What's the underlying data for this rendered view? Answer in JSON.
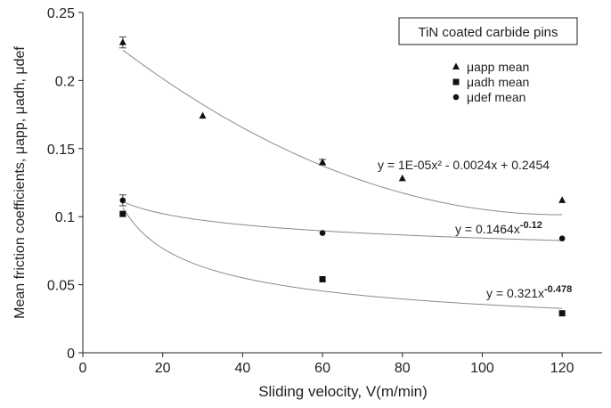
{
  "chart_data": {
    "type": "scatter",
    "title": "",
    "xlabel": "Sliding velocity, V(m/min)",
    "ylabel": "Mean friction coefficients, μapp, μadh, μdef",
    "xlim": [
      0,
      130
    ],
    "ylim": [
      0,
      0.25
    ],
    "x_ticks": [
      0,
      20,
      40,
      60,
      80,
      100,
      120
    ],
    "y_ticks": [
      0,
      0.05,
      0.1,
      0.15,
      0.2,
      0.25
    ],
    "x_tick_labels": [
      "0",
      "20",
      "40",
      "60",
      "80",
      "100",
      "120"
    ],
    "y_tick_labels": [
      "0",
      "0.05",
      "0.1",
      "0.15",
      "0.2",
      "0.25"
    ],
    "grid": false,
    "legend_position": "top-right",
    "annotation_box": "TiN coated carbide pins",
    "series": [
      {
        "name": "μapp  mean",
        "marker": "triangle",
        "points": [
          {
            "x": 10,
            "y": 0.228,
            "err": 0.004
          },
          {
            "x": 30,
            "y": 0.174
          },
          {
            "x": 60,
            "y": 0.14,
            "err": 0.002
          },
          {
            "x": 80,
            "y": 0.128
          },
          {
            "x": 120,
            "y": 0.112
          }
        ],
        "trendline": {
          "kind": "poly2",
          "a": 1e-05,
          "b": -0.0024,
          "c": 0.2454,
          "equation": "y = 1E-05x² - 0.0024x + 0.2454"
        }
      },
      {
        "name": "μadh mean",
        "marker": "square",
        "points": [
          {
            "x": 10,
            "y": 0.102
          },
          {
            "x": 60,
            "y": 0.054
          },
          {
            "x": 120,
            "y": 0.029
          }
        ],
        "trendline": {
          "kind": "power",
          "a": 0.321,
          "b": -0.478,
          "equation": "y = 0.321x",
          "exponent": "-0.478"
        }
      },
      {
        "name": "μdef mean",
        "marker": "circle",
        "points": [
          {
            "x": 10,
            "y": 0.112,
            "err": 0.004
          },
          {
            "x": 60,
            "y": 0.088
          },
          {
            "x": 120,
            "y": 0.084
          }
        ],
        "trendline": {
          "kind": "power",
          "a": 0.1464,
          "b": -0.12,
          "equation": "y = 0.1464x",
          "exponent": "-0.12"
        }
      }
    ]
  }
}
